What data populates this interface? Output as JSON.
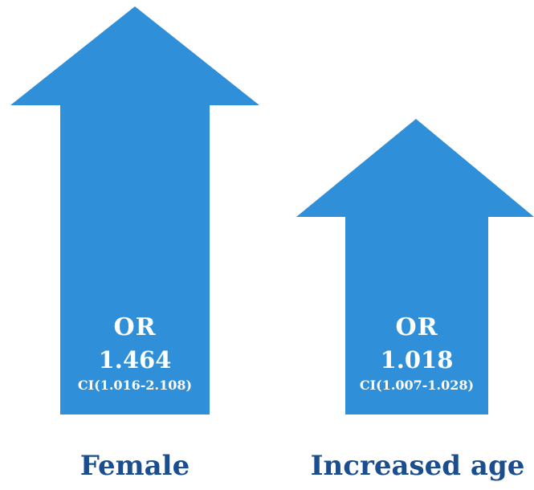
{
  "colors": {
    "arrow": "#2f8fd8",
    "caption": "#1a4e8e",
    "arrow_text": "#ffffff"
  },
  "arrows": [
    {
      "or_label": "OR",
      "or_value": "1.464",
      "ci": "CI(1.016-2.108)",
      "caption": "Female"
    },
    {
      "or_label": "OR",
      "or_value": "1.018",
      "ci": "CI(1.007-1.028)",
      "caption": "Increased age"
    }
  ]
}
